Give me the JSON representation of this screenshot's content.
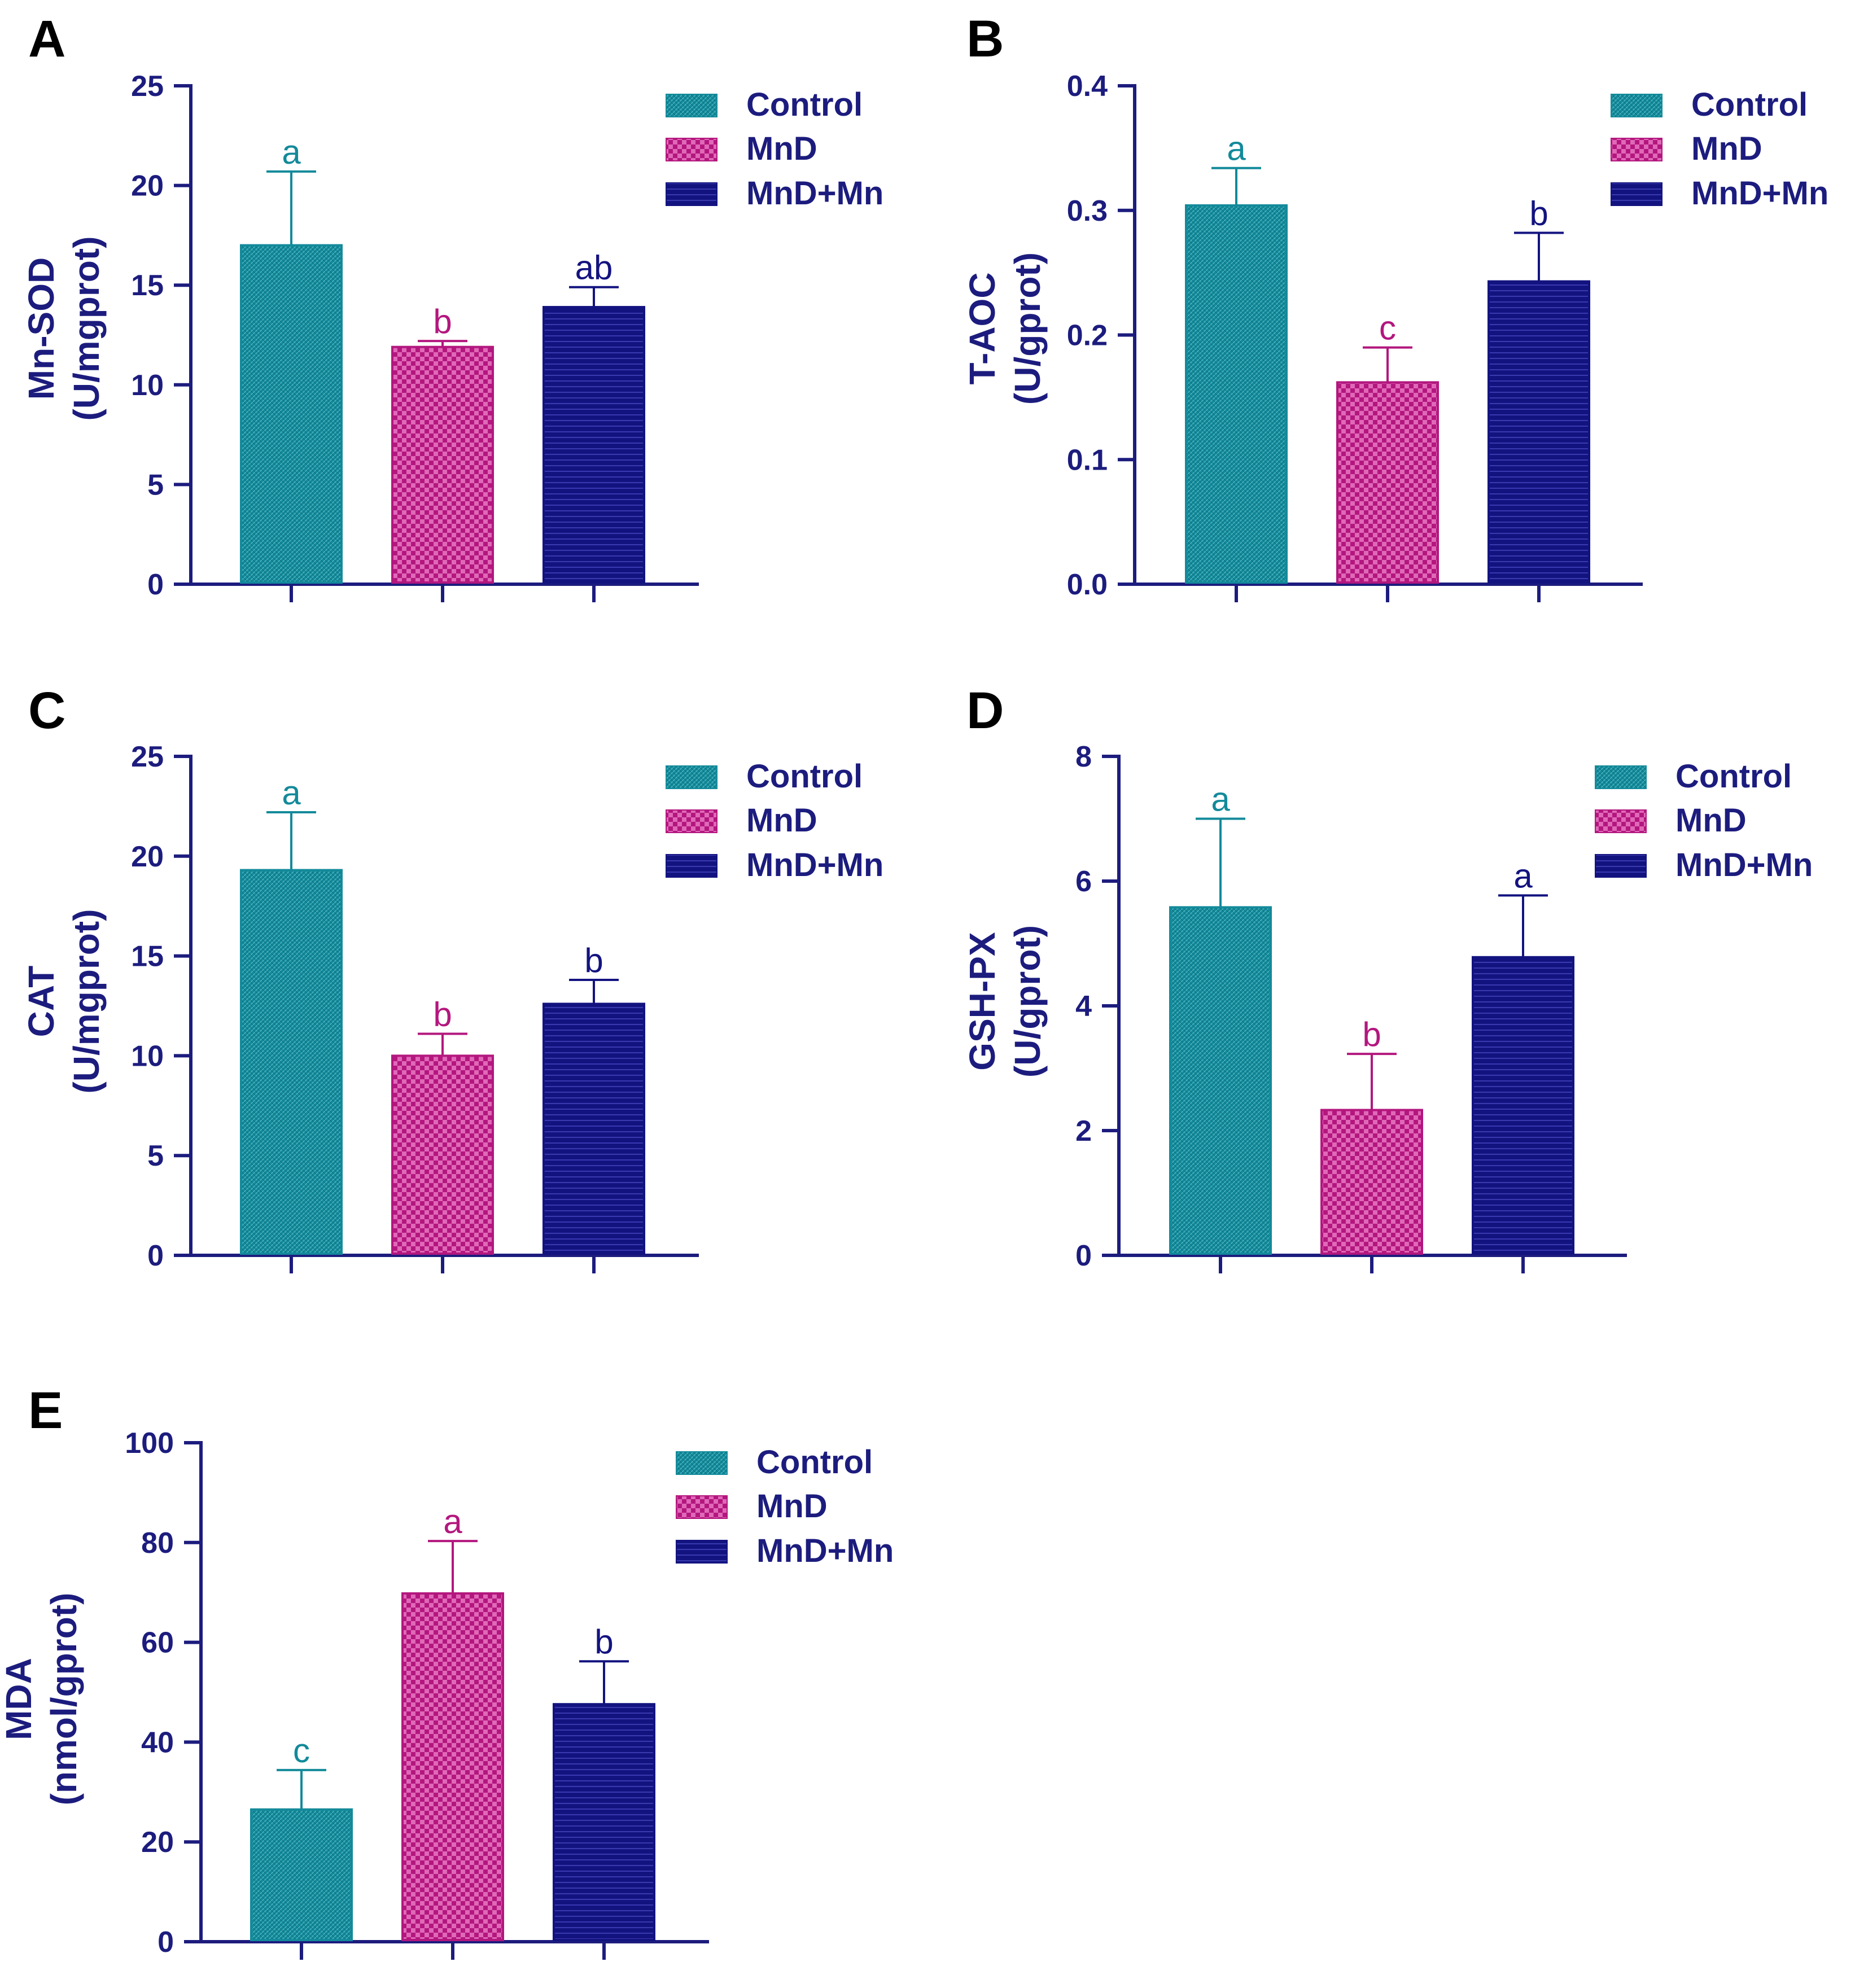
{
  "colors": {
    "axis": "#1c1c7e",
    "Control": "#138a9a",
    "MnD": "#b3177e",
    "MnD+Mn": "#131380"
  },
  "legend": [
    "Control",
    "MnD",
    "MnD+Mn"
  ],
  "chart_data": [
    {
      "type": "bar",
      "panel": "A",
      "ylabel_lines": [
        "Mn-SOD",
        "(U/mgprot)"
      ],
      "categories": [
        "Control",
        "MnD",
        "MnD+Mn"
      ],
      "values": [
        17,
        11.9,
        13.9
      ],
      "errors": [
        3.7,
        0.3,
        1.0
      ],
      "significance": [
        "a",
        "b",
        "ab"
      ],
      "ylim": [
        0,
        25
      ],
      "yticks": [
        0,
        5,
        10,
        15,
        20,
        25
      ],
      "ytick_labels": [
        "0",
        "5",
        "10",
        "15",
        "20",
        "25"
      ],
      "legend_position": "top-right"
    },
    {
      "type": "bar",
      "panel": "B",
      "ylabel_lines": [
        "T-AOC",
        "(U/gprot)"
      ],
      "categories": [
        "Control",
        "MnD",
        "MnD+Mn"
      ],
      "values": [
        0.304,
        0.162,
        0.243
      ],
      "errors": [
        0.03,
        0.028,
        0.039
      ],
      "significance": [
        "a",
        "c",
        "b"
      ],
      "ylim": [
        0,
        0.4
      ],
      "yticks": [
        0,
        0.1,
        0.2,
        0.3,
        0.4
      ],
      "ytick_labels": [
        "0.0",
        "0.1",
        "0.2",
        "0.3",
        "0.4"
      ],
      "legend_position": "top-right"
    },
    {
      "type": "bar",
      "panel": "C",
      "ylabel_lines": [
        "CAT",
        "(U/mgprot)"
      ],
      "categories": [
        "Control",
        "MnD",
        "MnD+Mn"
      ],
      "values": [
        19.3,
        10.0,
        12.6
      ],
      "errors": [
        2.9,
        1.1,
        1.2
      ],
      "significance": [
        "a",
        "b",
        "b"
      ],
      "ylim": [
        0,
        25
      ],
      "yticks": [
        0,
        5,
        10,
        15,
        20,
        25
      ],
      "ytick_labels": [
        "0",
        "5",
        "10",
        "15",
        "20",
        "25"
      ],
      "legend_position": "top-right"
    },
    {
      "type": "bar",
      "panel": "D",
      "ylabel_lines": [
        "GSH-PX",
        "(U/gprot)"
      ],
      "categories": [
        "Control",
        "MnD",
        "MnD+Mn"
      ],
      "values": [
        5.58,
        2.33,
        4.78
      ],
      "errors": [
        1.42,
        0.9,
        0.99
      ],
      "significance": [
        "a",
        "b",
        "a"
      ],
      "ylim": [
        0,
        8
      ],
      "yticks": [
        0,
        2,
        4,
        6,
        8
      ],
      "ytick_labels": [
        "0",
        "2",
        "4",
        "6",
        "8"
      ],
      "legend_position": "top-right"
    },
    {
      "type": "bar",
      "panel": "E",
      "ylabel_lines": [
        "MDA",
        "(nmol/gprot)"
      ],
      "categories": [
        "Control",
        "MnD",
        "MnD+Mn"
      ],
      "values": [
        26.5,
        69.8,
        47.6
      ],
      "errors": [
        7.9,
        10.5,
        8.6
      ],
      "significance": [
        "c",
        "a",
        "b"
      ],
      "ylim": [
        0,
        100
      ],
      "yticks": [
        0,
        20,
        40,
        60,
        80,
        100
      ],
      "ytick_labels": [
        "0",
        "20",
        "40",
        "60",
        "80",
        "100"
      ],
      "legend_position": "top-right"
    }
  ]
}
